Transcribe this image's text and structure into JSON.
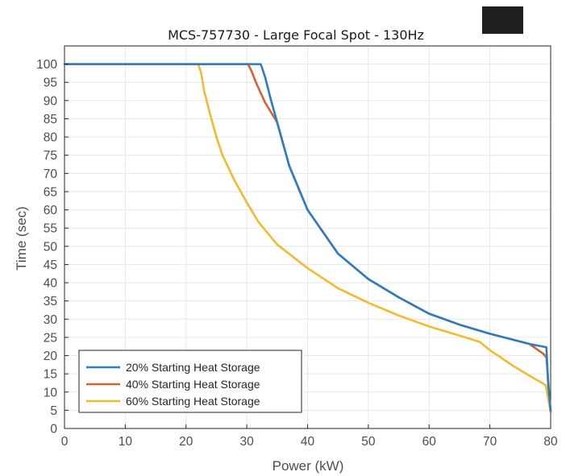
{
  "chart_data": {
    "type": "line",
    "title": "MCS-757730 - Large Focal Spot - 130Hz",
    "xlabel": "Power (kW)",
    "ylabel": "Time (sec)",
    "xlim": [
      0,
      80
    ],
    "ylim": [
      0,
      105
    ],
    "xticks": [
      0,
      10,
      20,
      30,
      40,
      50,
      60,
      70,
      80
    ],
    "yticks": [
      0,
      5,
      10,
      15,
      20,
      25,
      30,
      35,
      40,
      45,
      50,
      55,
      60,
      65,
      70,
      75,
      80,
      85,
      90,
      95,
      100
    ],
    "grid": true,
    "legend_position": "bottom-left",
    "colors": [
      "#2c7cc2",
      "#d8602b",
      "#f0bb2c"
    ],
    "series": [
      {
        "name": "20% Starting Heat Storage",
        "x": [
          0,
          32.3,
          33.0,
          34.0,
          35.0,
          37,
          40,
          45,
          50,
          55,
          60,
          65,
          70,
          76.5,
          79.3,
          79.6,
          80
        ],
        "y": [
          100,
          100,
          96.5,
          90,
          84,
          72,
          60,
          48,
          41,
          36,
          31.5,
          28.5,
          26,
          23.2,
          22.3,
          12,
          5
        ]
      },
      {
        "name": "40% Starting Heat Storage",
        "x": [
          0,
          30.2,
          30.8,
          31.5,
          33,
          35,
          37,
          40,
          45,
          50,
          55,
          60,
          65,
          70,
          76.5,
          78.8,
          79.3,
          80
        ],
        "y": [
          100,
          100,
          98,
          95,
          89.5,
          84,
          72,
          60,
          48,
          41,
          36,
          31.5,
          28.5,
          26,
          23.2,
          20.5,
          19.5,
          4.5
        ]
      },
      {
        "name": "60% Starting Heat Storage",
        "x": [
          0,
          22.0,
          22.5,
          23,
          24,
          25,
          26,
          28,
          30,
          32,
          35,
          40,
          45,
          50,
          55,
          60,
          65,
          68.3,
          70,
          74,
          77,
          78.8,
          79.2,
          80
        ],
        "y": [
          100,
          100,
          97.5,
          92.5,
          86,
          80,
          75,
          68,
          62,
          56.5,
          50.5,
          44,
          38.5,
          34.5,
          31,
          28,
          25.5,
          23.8,
          21.5,
          17,
          14,
          12.3,
          11.8,
          4.5
        ]
      }
    ]
  }
}
